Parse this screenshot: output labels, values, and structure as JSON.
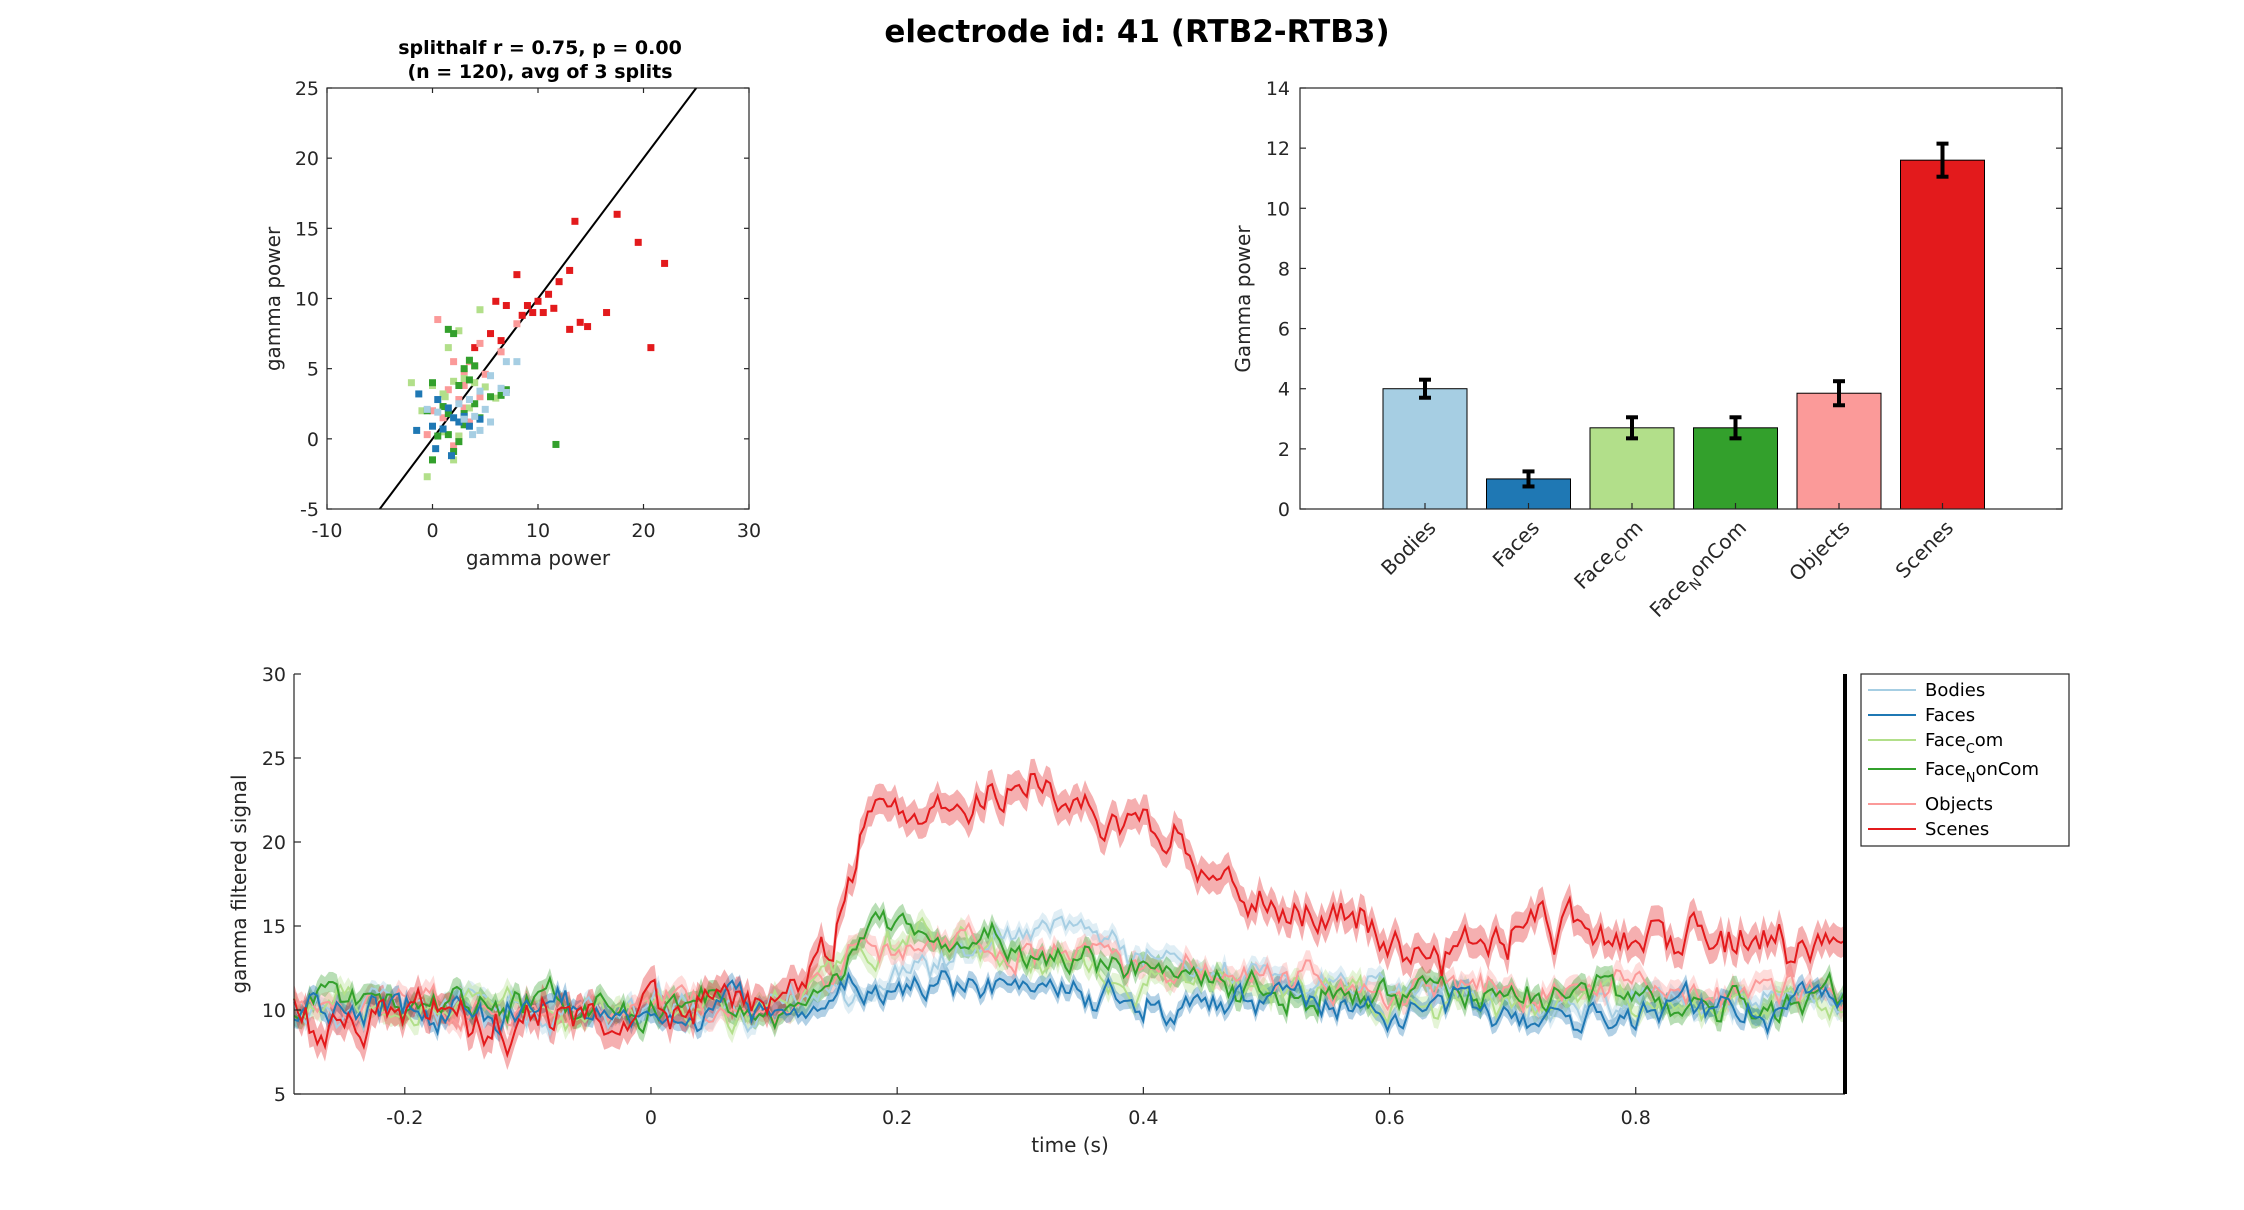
{
  "figure": {
    "title": "electrode id: 41 (RTB2-RTB3)"
  },
  "colors": {
    "Bodies": "#a6cee3",
    "Faces": "#1f78b4",
    "Face_Com": "#b2df8a",
    "Face_NonCom": "#33a02c",
    "Objects": "#fb9a99",
    "Scenes": "#e31a1c"
  },
  "chart_data": [
    {
      "type": "scatter",
      "title": "splithalf r = 0.75, p = 0.00",
      "subtitle": "(n = 120), avg of 3 splits",
      "xlabel": "gamma power",
      "ylabel": "gamma power",
      "xlim": [
        -10,
        30
      ],
      "ylim": [
        -5,
        25
      ],
      "xticks": [
        "-10",
        "0",
        "10",
        "20",
        "30"
      ],
      "yticks": [
        "-5",
        "0",
        "5",
        "10",
        "15",
        "20",
        "25"
      ],
      "fit_line": {
        "slope": 1.0,
        "intercept": 0.0
      },
      "series": [
        {
          "key": "Scenes",
          "points": [
            [
              13.5,
              15.5
            ],
            [
              17.5,
              16
            ],
            [
              8,
              11.7
            ],
            [
              12,
              11.2
            ],
            [
              19.5,
              14
            ],
            [
              22,
              12.5
            ],
            [
              13,
              12
            ],
            [
              11,
              10.3
            ],
            [
              6,
              9.8
            ],
            [
              7,
              9.5
            ],
            [
              9,
              9.5
            ],
            [
              10,
              9.8
            ],
            [
              11.5,
              9.3
            ],
            [
              9.5,
              9
            ],
            [
              10.5,
              9
            ],
            [
              8.5,
              8.8
            ],
            [
              16.5,
              9
            ],
            [
              14,
              8.3
            ],
            [
              14.7,
              8
            ],
            [
              20.7,
              6.5
            ],
            [
              13,
              7.8
            ],
            [
              5.5,
              7.5
            ],
            [
              6.5,
              7
            ],
            [
              4,
              6.5
            ]
          ]
        },
        {
          "key": "Objects",
          "points": [
            [
              0.5,
              8.5
            ],
            [
              8,
              8.2
            ],
            [
              4.5,
              6.8
            ],
            [
              6.5,
              6.2
            ],
            [
              2,
              5.5
            ],
            [
              3.5,
              5.5
            ],
            [
              4,
              5.2
            ],
            [
              3,
              4.8
            ],
            [
              1.5,
              3.5
            ],
            [
              3,
              3.8
            ],
            [
              5,
              4.6
            ],
            [
              2.5,
              2.8
            ],
            [
              4.5,
              3
            ],
            [
              0,
              2
            ],
            [
              1,
              1.5
            ],
            [
              -0.5,
              0.3
            ],
            [
              3,
              2.2
            ],
            [
              3.5,
              1.2
            ],
            [
              2.5,
              0.2
            ],
            [
              2,
              -0.5
            ]
          ]
        },
        {
          "key": "Face_Com",
          "points": [
            [
              4.5,
              9.2
            ],
            [
              2.5,
              7.7
            ],
            [
              1.5,
              6.5
            ],
            [
              -2,
              4
            ],
            [
              0,
              3.8
            ],
            [
              1,
              3.2
            ],
            [
              2,
              4.1
            ],
            [
              3,
              4.3
            ],
            [
              4,
              4
            ],
            [
              5,
              3.7
            ],
            [
              -1,
              2
            ],
            [
              3.5,
              2.2
            ],
            [
              6,
              2.9
            ],
            [
              1,
              0.5
            ],
            [
              2.5,
              0.2
            ],
            [
              0,
              -1.5
            ],
            [
              -0.5,
              -2.7
            ],
            [
              2,
              -1.5
            ],
            [
              1.2,
              3
            ]
          ]
        },
        {
          "key": "Face_NonCom",
          "points": [
            [
              1.5,
              7.8
            ],
            [
              2,
              7.5
            ],
            [
              3.5,
              5.6
            ],
            [
              3,
              5
            ],
            [
              4,
              5.2
            ],
            [
              0,
              4
            ],
            [
              2.5,
              3.8
            ],
            [
              3.5,
              4.2
            ],
            [
              1,
              2.3
            ],
            [
              4,
              2.5
            ],
            [
              5.5,
              3
            ],
            [
              6.5,
              3.1
            ],
            [
              7,
              3.5
            ],
            [
              -0.5,
              2
            ],
            [
              1.5,
              1.8
            ],
            [
              3,
              1.8
            ],
            [
              4.5,
              1.5
            ],
            [
              0.5,
              0.2
            ],
            [
              1.5,
              0.3
            ],
            [
              2.5,
              -0.2
            ],
            [
              2,
              -0.9
            ],
            [
              0,
              -1.5
            ],
            [
              11.7,
              -0.4
            ],
            [
              3,
              1
            ]
          ]
        },
        {
          "key": "Faces",
          "points": [
            [
              -1.3,
              3.2
            ],
            [
              0.5,
              2.8
            ],
            [
              1.5,
              2.2
            ],
            [
              2,
              1.5
            ],
            [
              3,
              1.6
            ],
            [
              -1.5,
              0.6
            ],
            [
              0,
              0.9
            ],
            [
              1,
              0.7
            ],
            [
              2.5,
              1.2
            ],
            [
              0.3,
              -0.7
            ],
            [
              1.8,
              -1.2
            ],
            [
              3.5,
              0.9
            ],
            [
              4.5,
              1.4
            ]
          ]
        },
        {
          "key": "Bodies",
          "points": [
            [
              7,
              5.5
            ],
            [
              8,
              5.5
            ],
            [
              5.5,
              4.5
            ],
            [
              6.5,
              3.6
            ],
            [
              7,
              3.3
            ],
            [
              4.5,
              3.4
            ],
            [
              3.5,
              2.8
            ],
            [
              2.5,
              2.5
            ],
            [
              5,
              2.1
            ],
            [
              4,
              1.6
            ],
            [
              3,
              1.4
            ],
            [
              4.5,
              0.6
            ],
            [
              -0.5,
              2.1
            ],
            [
              0.5,
              1.9
            ],
            [
              5.5,
              1.2
            ],
            [
              3.8,
              0.3
            ]
          ]
        }
      ]
    },
    {
      "type": "bar",
      "xlabel": "",
      "ylabel": "Gamma power",
      "ylim": [
        0,
        14
      ],
      "yticks": [
        "0",
        "2",
        "4",
        "6",
        "8",
        "10",
        "12",
        "14"
      ],
      "categories": [
        "Bodies",
        "Faces",
        "FaceCom",
        "FaceNonCom",
        "Objects",
        "Scenes"
      ],
      "category_keys": [
        "Bodies",
        "Faces",
        "Face_Com",
        "Face_NonCom",
        "Objects",
        "Scenes"
      ],
      "values": [
        4.0,
        1.0,
        2.7,
        2.7,
        3.85,
        11.6
      ],
      "errors": [
        0.3,
        0.25,
        0.35,
        0.35,
        0.4,
        0.55
      ]
    },
    {
      "type": "line",
      "xlabel": "time (s)",
      "ylabel": "gamma filtered signal",
      "xlim": [
        -0.29,
        0.97
      ],
      "ylim": [
        5,
        30
      ],
      "xticks": [
        "-0.2",
        "0",
        "0.2",
        "0.4",
        "0.6",
        "0.8"
      ],
      "yticks": [
        "5",
        "10",
        "15",
        "20",
        "25",
        "30"
      ],
      "legend_position": "outside-right-top",
      "series": [
        {
          "key": "Bodies",
          "label_parts": [
            "Bodies",
            "",
            ""
          ],
          "band": 0.5,
          "x": [
            -0.29,
            -0.2,
            -0.1,
            0,
            0.1,
            0.12,
            0.16,
            0.2,
            0.25,
            0.3,
            0.35,
            0.4,
            0.45,
            0.5,
            0.6,
            0.7,
            0.8,
            0.9,
            0.97
          ],
          "values": [
            10,
            10.2,
            10,
            10,
            10,
            10.6,
            11.5,
            12.2,
            13.2,
            14.2,
            14.5,
            13.2,
            12.5,
            11.6,
            11,
            10.6,
            10.5,
            10.4,
            10.5
          ]
        },
        {
          "key": "Faces",
          "label_parts": [
            "Faces",
            "",
            ""
          ],
          "band": 0.5,
          "x": [
            -0.29,
            -0.2,
            -0.1,
            0,
            0.1,
            0.12,
            0.16,
            0.2,
            0.25,
            0.3,
            0.35,
            0.4,
            0.45,
            0.5,
            0.6,
            0.7,
            0.8,
            0.9,
            0.97
          ],
          "values": [
            10,
            10,
            10,
            10,
            10,
            10.4,
            11,
            11.6,
            11.3,
            11.1,
            11,
            10.9,
            10.7,
            10.5,
            10,
            10.1,
            10.2,
            10.1,
            10.2
          ]
        },
        {
          "key": "Face_Com",
          "label_parts": [
            "Face",
            "C",
            "om"
          ],
          "band": 0.6,
          "x": [
            -0.29,
            -0.2,
            -0.1,
            0,
            0.1,
            0.12,
            0.16,
            0.2,
            0.25,
            0.3,
            0.35,
            0.4,
            0.45,
            0.5,
            0.6,
            0.7,
            0.8,
            0.9,
            0.97
          ],
          "values": [
            10.3,
            10.5,
            10.2,
            10.2,
            10,
            10.6,
            12.5,
            13.8,
            14,
            13.3,
            12.7,
            12,
            11.5,
            11.2,
            10.8,
            10.6,
            10.5,
            10.4,
            10.6
          ]
        },
        {
          "key": "Face_NonCom",
          "label_parts": [
            "Face",
            "N",
            "onCom"
          ],
          "band": 0.6,
          "x": [
            -0.29,
            -0.2,
            -0.1,
            0,
            0.1,
            0.12,
            0.16,
            0.2,
            0.25,
            0.3,
            0.35,
            0.4,
            0.45,
            0.5,
            0.6,
            0.7,
            0.8,
            0.9,
            0.97
          ],
          "values": [
            10.3,
            10.6,
            10.3,
            10.2,
            10,
            10.8,
            13.5,
            14.7,
            14.5,
            13.8,
            13,
            12.3,
            11.8,
            11.5,
            11,
            10.8,
            10.9,
            10.7,
            10.8
          ]
        },
        {
          "key": "Objects",
          "label_parts": [
            "Objects",
            "",
            ""
          ],
          "band": 0.6,
          "x": [
            -0.29,
            -0.2,
            -0.1,
            0,
            0.1,
            0.12,
            0.16,
            0.2,
            0.25,
            0.3,
            0.35,
            0.4,
            0.45,
            0.5,
            0.6,
            0.7,
            0.8,
            0.9,
            0.97
          ],
          "values": [
            10.2,
            10.3,
            10.2,
            10.1,
            10,
            10.7,
            13,
            14.2,
            14.4,
            13.8,
            13.4,
            12.8,
            12.2,
            11.6,
            11.2,
            11,
            11,
            10.9,
            11
          ]
        },
        {
          "key": "Scenes",
          "label_parts": [
            "Scenes",
            "",
            ""
          ],
          "band": 0.9,
          "x": [
            -0.29,
            -0.2,
            -0.1,
            0,
            0.1,
            0.12,
            0.14,
            0.16,
            0.18,
            0.2,
            0.22,
            0.25,
            0.28,
            0.3,
            0.33,
            0.36,
            0.4,
            0.45,
            0.5,
            0.55,
            0.6,
            0.65,
            0.7,
            0.75,
            0.8,
            0.85,
            0.9,
            0.95,
            0.97
          ],
          "values": [
            9.8,
            10,
            10,
            10,
            10.3,
            11.5,
            13.5,
            18.5,
            21.5,
            21.5,
            20.5,
            22.2,
            23.2,
            23,
            22.5,
            22.5,
            20.5,
            19,
            17.5,
            15.5,
            14.5,
            14,
            14.2,
            14.5,
            14.2,
            14,
            14,
            14.5,
            14.5
          ]
        }
      ]
    }
  ]
}
